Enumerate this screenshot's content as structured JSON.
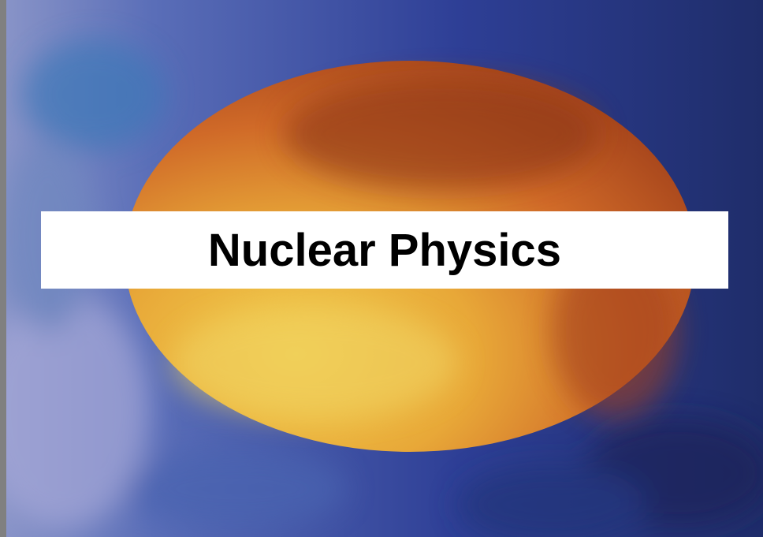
{
  "title": "Nuclear Physics"
}
